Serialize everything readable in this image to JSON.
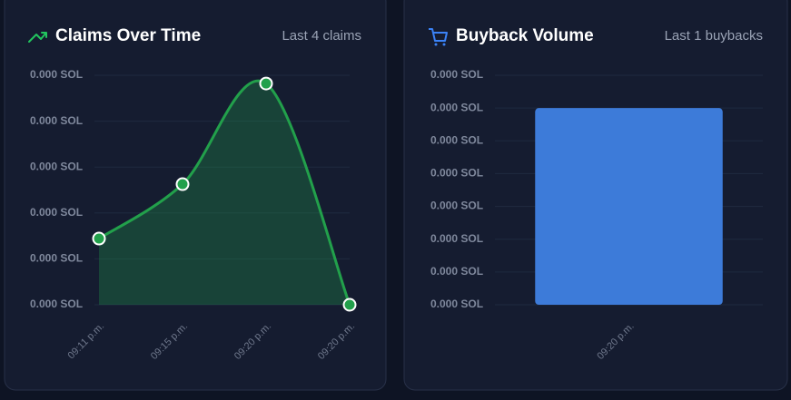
{
  "chart_data": [
    {
      "type": "line",
      "title": "Claims Over Time",
      "subtitle": "Last 4 claims",
      "categories": [
        "09:11 p.m.",
        "09:15 p.m.",
        "09:20 p.m.",
        "09:20 p.m."
      ],
      "values": [
        7.21e-05,
        0.0001314,
        0.000241,
        0
      ],
      "color": "#22a04b",
      "ylim": [
        0,
        0.00025
      ],
      "yticks": [
        {
          "value": 0,
          "label": "0.000 SOL"
        },
        {
          "value": 5e-05,
          "label": "0.000 SOL"
        },
        {
          "value": 0.0001,
          "label": "0.000 SOL"
        },
        {
          "value": 0.00015,
          "label": "0.000 SOL"
        },
        {
          "value": 0.0002,
          "label": "0.000 SOL"
        },
        {
          "value": 0.00025,
          "label": "0.000 SOL"
        }
      ],
      "grid": true
    },
    {
      "type": "bar",
      "title": "Buyback Volume",
      "subtitle": "Last 1 buybacks",
      "categories": [
        "09:20 p.m."
      ],
      "values": [
        6e-05
      ],
      "color": "#3d7bd9",
      "ylim": [
        0,
        7e-05
      ],
      "yticks": [
        {
          "value": 0,
          "label": "0.000 SOL"
        },
        {
          "value": 1e-05,
          "label": "0.000 SOL"
        },
        {
          "value": 2e-05,
          "label": "0.000 SOL"
        },
        {
          "value": 3e-05,
          "label": "0.000 SOL"
        },
        {
          "value": 4e-05,
          "label": "0.000 SOL"
        },
        {
          "value": 5e-05,
          "label": "0.000 SOL"
        },
        {
          "value": 6e-05,
          "label": "0.000 SOL"
        },
        {
          "value": 7e-05,
          "label": "0.000 SOL"
        }
      ],
      "grid": true
    }
  ]
}
